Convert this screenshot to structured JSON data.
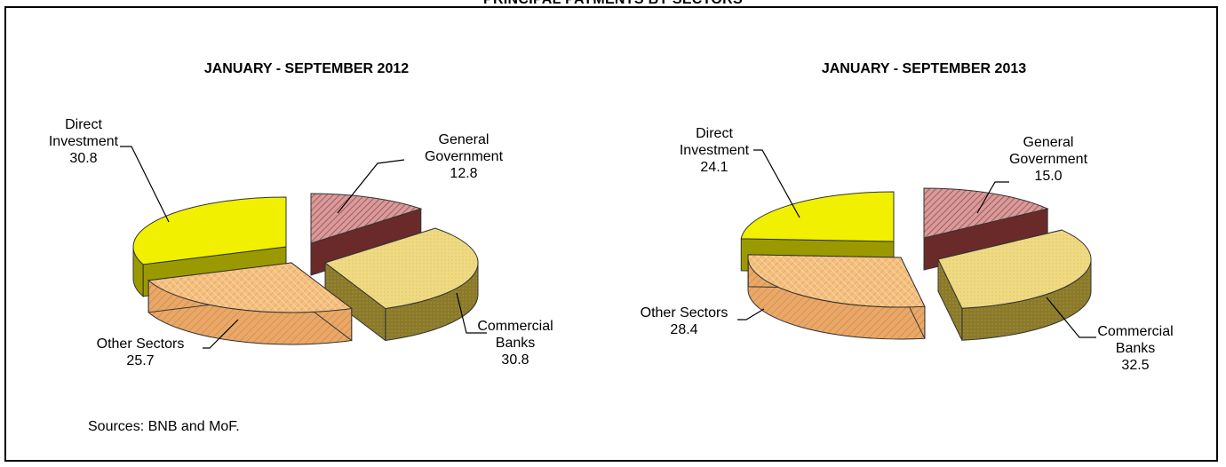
{
  "page": {
    "title": "PRINCIPAL PAYMENTS BY SECTORS",
    "source": "Sources: BNB and MoF."
  },
  "colors": {
    "direct_investment": "#f0f000",
    "general_government": "#c87a7a",
    "commercial_banks": "#eed77a",
    "other_sectors": "#f2b66e"
  },
  "chart_data": [
    {
      "type": "pie",
      "title": "JANUARY - SEPTEMBER 2012",
      "slices": [
        {
          "name": "General Government",
          "value": 12.8,
          "label_lines": [
            "General",
            "Government",
            "12.8"
          ]
        },
        {
          "name": "Commercial Banks",
          "value": 30.8,
          "label_lines": [
            "Commercial",
            "Banks",
            "30.8"
          ]
        },
        {
          "name": "Other Sectors",
          "value": 25.7,
          "label_lines": [
            "Other Sectors",
            "25.7"
          ]
        },
        {
          "name": "Direct Investment",
          "value": 30.8,
          "label_lines": [
            "Direct",
            "Investment",
            "30.8"
          ]
        }
      ]
    },
    {
      "type": "pie",
      "title": "JANUARY - SEPTEMBER 2013",
      "slices": [
        {
          "name": "General Government",
          "value": 15.0,
          "label_lines": [
            "General",
            "Government",
            "15.0"
          ]
        },
        {
          "name": "Commercial Banks",
          "value": 32.5,
          "label_lines": [
            "Commercial",
            "Banks",
            "32.5"
          ]
        },
        {
          "name": "Other Sectors",
          "value": 28.4,
          "label_lines": [
            "Other Sectors",
            "28.4"
          ]
        },
        {
          "name": "Direct Investment",
          "value": 24.1,
          "label_lines": [
            "Direct",
            "Investment",
            "24.1"
          ]
        }
      ]
    }
  ]
}
